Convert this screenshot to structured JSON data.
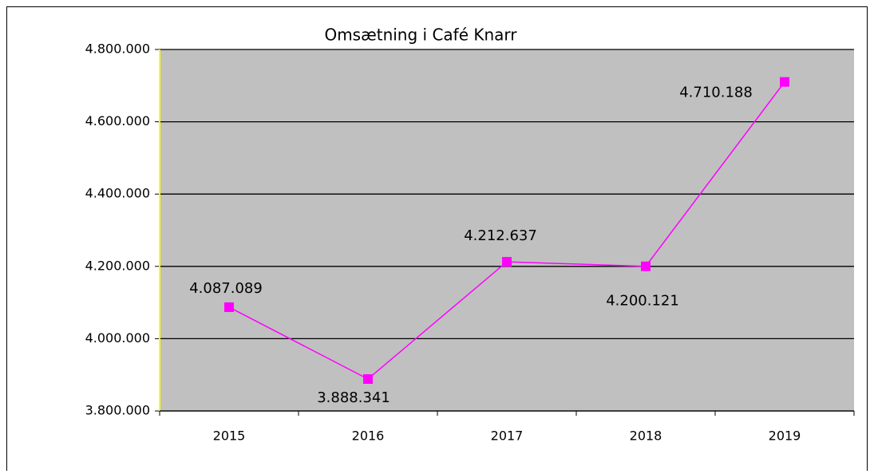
{
  "chart_data": {
    "type": "line",
    "title": "Omsætning i Café Knarr",
    "categories": [
      "2015",
      "2016",
      "2017",
      "2018",
      "2019"
    ],
    "series": [
      {
        "name": "Omsætning",
        "color": "#ff00ff",
        "values": [
          4087089,
          3888341,
          4212637,
          4200121,
          4710188
        ],
        "value_labels": [
          "4.087.089",
          "3.888.341",
          "4.212.637",
          "4.200.121",
          "4.710.188"
        ]
      }
    ],
    "ylim": [
      3800000,
      4800000
    ],
    "yticks": [
      {
        "value": 3800000,
        "label": "3.800.000"
      },
      {
        "value": 4000000,
        "label": "4.000.000"
      },
      {
        "value": 4200000,
        "label": "4.200.000"
      },
      {
        "value": 4400000,
        "label": "4.400.000"
      },
      {
        "value": 4600000,
        "label": "4.600.000"
      },
      {
        "value": 4800000,
        "label": "4.800.000"
      }
    ],
    "grid": true
  }
}
